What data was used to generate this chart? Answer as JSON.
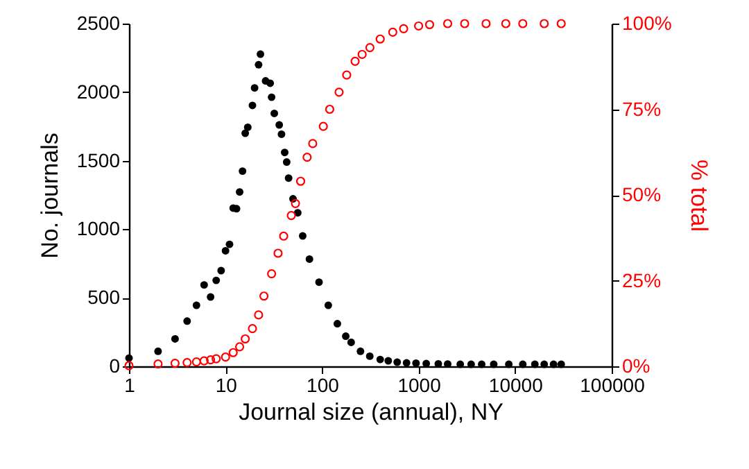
{
  "chart_data": {
    "type": "scatter",
    "xlabel": "Journal size (annual), NY",
    "ylabel": "No. journals",
    "y2label": "% total",
    "xlim": [
      1,
      100000
    ],
    "xticks": [
      1,
      10,
      100,
      1000,
      10000,
      100000
    ],
    "log": "x",
    "ylim": [
      0,
      2500
    ],
    "yticks": [
      0,
      500,
      1000,
      1500,
      2000,
      2500
    ],
    "y2lim": [
      0,
      100
    ],
    "y2ticks": [
      {
        "value": 0,
        "label": "0%"
      },
      {
        "value": 25,
        "label": "25%"
      },
      {
        "value": 50,
        "label": "50%"
      },
      {
        "value": 75,
        "label": "75%"
      },
      {
        "value": 100,
        "label": "100%"
      }
    ],
    "grid": false,
    "marker": "circle",
    "series": [
      {
        "color": "#000000",
        "x": [
          1,
          2,
          3,
          4,
          5,
          6,
          7,
          8,
          9,
          10,
          11,
          12,
          13,
          14,
          15,
          16,
          17,
          19,
          20,
          22,
          23,
          26,
          29,
          30,
          32,
          36,
          38,
          41,
          43,
          45,
          50,
          56,
          63,
          74,
          93,
          116,
          144,
          176,
          200,
          250,
          312,
          400,
          485,
          600,
          750,
          940,
          1200,
          1600,
          2000,
          2700,
          3500,
          4500,
          6000,
          8600,
          12000,
          16000,
          20000,
          25000,
          30000
        ],
        "values": [
          60,
          110,
          200,
          330,
          445,
          594,
          506,
          627,
          698,
          843,
          890,
          1154,
          1150,
          1272,
          1424,
          1700,
          1744,
          1903,
          2031,
          2200,
          2277,
          2082,
          2065,
          1963,
          1845,
          1761,
          1693,
          1560,
          1490,
          1373,
          1222,
          1120,
          951,
          782,
          614,
          445,
          311,
          220,
          175,
          110,
          74,
          50,
          40,
          30,
          25,
          23,
          20,
          18,
          17,
          15,
          15,
          15,
          15,
          15,
          15,
          15,
          15,
          15,
          15
        ]
      },
      {
        "color": "#ff0000",
        "axis": "y2",
        "x": [
          1,
          2,
          3,
          4,
          5,
          6,
          7,
          8,
          10,
          12,
          14,
          16,
          19,
          22,
          25,
          30,
          35,
          40,
          48,
          53,
          60,
          70,
          80,
          103,
          120,
          150,
          180,
          220,
          260,
          313,
          400,
          540,
          700,
          1000,
          1300,
          2000,
          3000,
          5000,
          8000,
          12000,
          20000,
          30000
        ],
        "values": [
          0.2,
          0.7,
          0.9,
          1.1,
          1.3,
          1.6,
          1.9,
          2.2,
          2.7,
          4,
          5.7,
          8,
          11,
          15,
          20.5,
          27,
          33,
          38,
          44,
          47.5,
          54,
          61,
          65,
          70,
          75,
          80,
          85,
          89,
          91,
          93,
          95.5,
          97.5,
          98.5,
          99.3,
          99.7,
          100,
          100,
          100,
          100,
          100,
          100,
          100
        ]
      }
    ]
  }
}
